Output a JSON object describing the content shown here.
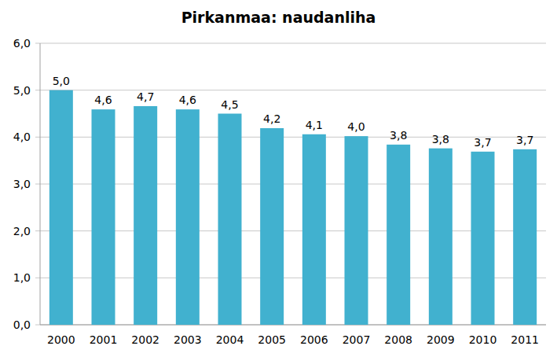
{
  "chart_data": {
    "type": "bar",
    "title": "Pirkanmaa: naudanliha",
    "categories": [
      "2000",
      "2001",
      "2002",
      "2003",
      "2004",
      "2005",
      "2006",
      "2007",
      "2008",
      "2009",
      "2010",
      "2011"
    ],
    "values": [
      5.0,
      4.59,
      4.66,
      4.59,
      4.5,
      4.19,
      4.06,
      4.02,
      3.84,
      3.76,
      3.69,
      3.74
    ],
    "value_labels": [
      "5,0",
      "4,6",
      "4,7",
      "4,6",
      "4,5",
      "4,2",
      "4,1",
      "4,0",
      "3,8",
      "3,8",
      "3,7",
      "3,7"
    ],
    "color": "#41b1cf",
    "ylim": [
      0,
      6
    ],
    "yticks": [
      {
        "value": 0,
        "label": "0,0"
      },
      {
        "value": 1,
        "label": "1,0"
      },
      {
        "value": 2,
        "label": "2,0"
      },
      {
        "value": 3,
        "label": "3,0"
      },
      {
        "value": 4,
        "label": "4,0"
      },
      {
        "value": 5,
        "label": "5,0"
      },
      {
        "value": 6,
        "label": "6,0"
      }
    ],
    "grid": true,
    "data_labels": true
  }
}
